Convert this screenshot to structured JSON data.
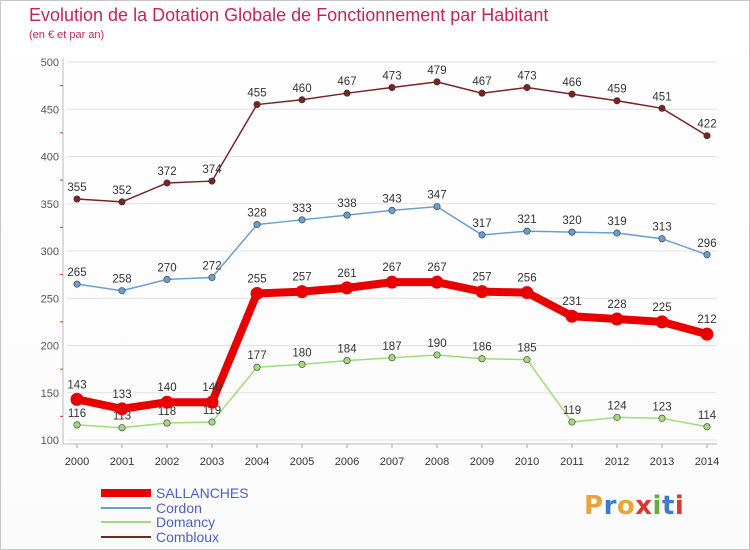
{
  "header": {
    "title": "Evolution de la Dotation Globale de Fonctionnement par Habitant",
    "subtitle": "(en € et par an)"
  },
  "logo": {
    "text": "Proxiti",
    "letters": [
      "P",
      "r",
      "o",
      "x",
      "i",
      "t",
      "i"
    ],
    "colors": [
      "#e8a33b",
      "#3a7fc4",
      "#e8a33b",
      "#d43a2f",
      "#5fae3b",
      "#3a7fc4",
      "#d43a2f"
    ]
  },
  "chart_data": {
    "type": "line",
    "title": "Evolution de la Dotation Globale de Fonctionnement par Habitant",
    "subtitle": "(en € et par an)",
    "x": [
      "2000",
      "2001",
      "2002",
      "2003",
      "2004",
      "2005",
      "2006",
      "2007",
      "2008",
      "2009",
      "2010",
      "2011",
      "2012",
      "2013",
      "2014"
    ],
    "ylim": [
      100,
      500
    ],
    "yticks": [
      100,
      150,
      200,
      250,
      300,
      350,
      400,
      450,
      500
    ],
    "grid": true,
    "legend_position": "bottom-left",
    "series": [
      {
        "name": "Combloux",
        "color": "#7a2323",
        "emphasis": false,
        "values": [
          355,
          352,
          372,
          374,
          455,
          460,
          467,
          473,
          479,
          467,
          473,
          466,
          459,
          451,
          422
        ]
      },
      {
        "name": "Cordon",
        "color": "#6a9fd0",
        "emphasis": false,
        "values": [
          265,
          258,
          270,
          272,
          328,
          333,
          338,
          343,
          347,
          317,
          321,
          320,
          319,
          313,
          296
        ]
      },
      {
        "name": "Domancy",
        "color": "#9fdd78",
        "emphasis": false,
        "values": [
          116,
          113,
          118,
          119,
          177,
          180,
          184,
          187,
          190,
          186,
          185,
          119,
          124,
          123,
          114
        ]
      },
      {
        "name": "SALLANCHES",
        "color": "#e80000",
        "emphasis": true,
        "values": [
          143,
          133,
          140,
          140,
          255,
          257,
          261,
          267,
          267,
          257,
          256,
          231,
          228,
          225,
          212
        ]
      }
    ],
    "legend_order": [
      "SALLANCHES",
      "Cordon",
      "Domancy",
      "Combloux"
    ]
  }
}
